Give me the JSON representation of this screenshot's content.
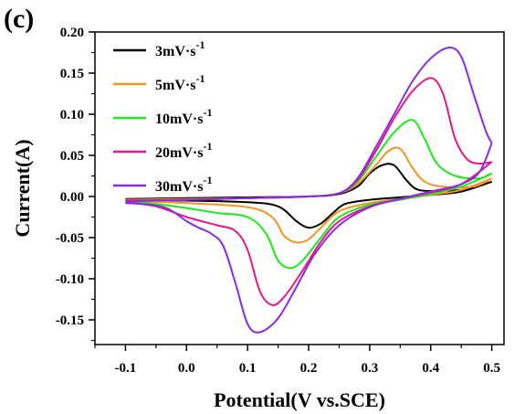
{
  "panel_label": "(c)",
  "chart_data": {
    "type": "line",
    "title": "",
    "xlabel": "Potential(V vs.SCE)",
    "ylabel": "Current(A)",
    "xlim": [
      -0.15,
      0.52
    ],
    "ylim": [
      -0.18,
      0.2
    ],
    "xticks": [
      -0.1,
      0.0,
      0.1,
      0.2,
      0.3,
      0.4,
      0.5
    ],
    "xtick_labels": [
      "-0.1",
      "0.0",
      "0.1",
      "0.2",
      "0.3",
      "0.4",
      "0.5"
    ],
    "yticks": [
      -0.15,
      -0.1,
      -0.05,
      0.0,
      0.05,
      0.1,
      0.15,
      0.2
    ],
    "ytick_labels": [
      "-0.15",
      "-0.10",
      "-0.05",
      "0.00",
      "0.05",
      "0.10",
      "0.15",
      "0.20"
    ],
    "grid": false,
    "legend_position": "top-left",
    "series": [
      {
        "name": "3mV·s",
        "name_sup": "-1",
        "color": "#000000",
        "anodic": [
          [
            -0.1,
            -0.003
          ],
          [
            0.0,
            -0.002
          ],
          [
            0.1,
            -0.001
          ],
          [
            0.2,
            0.0
          ],
          [
            0.25,
            0.003
          ],
          [
            0.28,
            0.012
          ],
          [
            0.3,
            0.028
          ],
          [
            0.32,
            0.038
          ],
          [
            0.34,
            0.038
          ],
          [
            0.36,
            0.02
          ],
          [
            0.38,
            0.008
          ],
          [
            0.42,
            0.007
          ],
          [
            0.46,
            0.009
          ],
          [
            0.5,
            0.018
          ]
        ],
        "cathodic": [
          [
            0.5,
            0.018
          ],
          [
            0.45,
            0.006
          ],
          [
            0.4,
            0.002
          ],
          [
            0.35,
            -0.001
          ],
          [
            0.3,
            -0.004
          ],
          [
            0.26,
            -0.009
          ],
          [
            0.24,
            -0.02
          ],
          [
            0.22,
            -0.033
          ],
          [
            0.2,
            -0.038
          ],
          [
            0.18,
            -0.03
          ],
          [
            0.15,
            -0.012
          ],
          [
            0.1,
            -0.007
          ],
          [
            0.0,
            -0.005
          ],
          [
            -0.1,
            -0.004
          ]
        ]
      },
      {
        "name": "5mV·s",
        "name_sup": "-1",
        "color": "#F7941D",
        "anodic": [
          [
            -0.1,
            -0.004
          ],
          [
            0.0,
            -0.003
          ],
          [
            0.1,
            -0.002
          ],
          [
            0.2,
            0.0
          ],
          [
            0.25,
            0.004
          ],
          [
            0.28,
            0.015
          ],
          [
            0.31,
            0.038
          ],
          [
            0.33,
            0.055
          ],
          [
            0.35,
            0.058
          ],
          [
            0.37,
            0.035
          ],
          [
            0.39,
            0.018
          ],
          [
            0.42,
            0.012
          ],
          [
            0.47,
            0.012
          ],
          [
            0.5,
            0.022
          ]
        ],
        "cathodic": [
          [
            0.5,
            0.022
          ],
          [
            0.45,
            0.008
          ],
          [
            0.4,
            0.002
          ],
          [
            0.35,
            -0.003
          ],
          [
            0.3,
            -0.008
          ],
          [
            0.25,
            -0.018
          ],
          [
            0.22,
            -0.038
          ],
          [
            0.2,
            -0.052
          ],
          [
            0.18,
            -0.056
          ],
          [
            0.16,
            -0.048
          ],
          [
            0.14,
            -0.025
          ],
          [
            0.1,
            -0.013
          ],
          [
            0.0,
            -0.008
          ],
          [
            -0.1,
            -0.005
          ]
        ]
      },
      {
        "name": "10mV·s",
        "name_sup": "-1",
        "color": "#1EE81E",
        "anodic": [
          [
            -0.1,
            -0.005
          ],
          [
            0.0,
            -0.004
          ],
          [
            0.1,
            -0.002
          ],
          [
            0.2,
            0.0
          ],
          [
            0.25,
            0.004
          ],
          [
            0.28,
            0.018
          ],
          [
            0.31,
            0.048
          ],
          [
            0.34,
            0.078
          ],
          [
            0.37,
            0.093
          ],
          [
            0.39,
            0.07
          ],
          [
            0.41,
            0.04
          ],
          [
            0.44,
            0.025
          ],
          [
            0.48,
            0.022
          ],
          [
            0.5,
            0.028
          ]
        ],
        "cathodic": [
          [
            0.5,
            0.028
          ],
          [
            0.45,
            0.012
          ],
          [
            0.4,
            0.003
          ],
          [
            0.35,
            -0.004
          ],
          [
            0.3,
            -0.01
          ],
          [
            0.25,
            -0.025
          ],
          [
            0.22,
            -0.05
          ],
          [
            0.19,
            -0.078
          ],
          [
            0.17,
            -0.087
          ],
          [
            0.15,
            -0.078
          ],
          [
            0.13,
            -0.045
          ],
          [
            0.1,
            -0.025
          ],
          [
            0.05,
            -0.02
          ],
          [
            0.0,
            -0.014
          ],
          [
            -0.05,
            -0.009
          ],
          [
            -0.1,
            -0.006
          ]
        ]
      },
      {
        "name": "20mV·s",
        "name_sup": "-1",
        "color": "#E8178A",
        "anodic": [
          [
            -0.1,
            -0.005
          ],
          [
            0.0,
            -0.004
          ],
          [
            0.1,
            -0.002
          ],
          [
            0.2,
            0.0
          ],
          [
            0.25,
            0.004
          ],
          [
            0.28,
            0.02
          ],
          [
            0.31,
            0.055
          ],
          [
            0.34,
            0.095
          ],
          [
            0.37,
            0.128
          ],
          [
            0.4,
            0.144
          ],
          [
            0.42,
            0.125
          ],
          [
            0.44,
            0.07
          ],
          [
            0.46,
            0.045
          ],
          [
            0.48,
            0.04
          ],
          [
            0.5,
            0.042
          ]
        ],
        "cathodic": [
          [
            0.5,
            0.042
          ],
          [
            0.45,
            0.015
          ],
          [
            0.4,
            0.005
          ],
          [
            0.35,
            -0.003
          ],
          [
            0.3,
            -0.012
          ],
          [
            0.25,
            -0.03
          ],
          [
            0.22,
            -0.055
          ],
          [
            0.19,
            -0.09
          ],
          [
            0.16,
            -0.122
          ],
          [
            0.14,
            -0.132
          ],
          [
            0.12,
            -0.115
          ],
          [
            0.1,
            -0.065
          ],
          [
            0.08,
            -0.042
          ],
          [
            0.05,
            -0.035
          ],
          [
            0.0,
            -0.025
          ],
          [
            -0.05,
            -0.012
          ],
          [
            -0.1,
            -0.007
          ]
        ]
      },
      {
        "name": "30mV·s",
        "name_sup": "-1",
        "color": "#8A2BE2",
        "anodic": [
          [
            -0.1,
            -0.006
          ],
          [
            0.0,
            -0.004
          ],
          [
            0.1,
            -0.002
          ],
          [
            0.2,
            0.0
          ],
          [
            0.25,
            0.004
          ],
          [
            0.28,
            0.022
          ],
          [
            0.31,
            0.06
          ],
          [
            0.34,
            0.1
          ],
          [
            0.37,
            0.14
          ],
          [
            0.4,
            0.168
          ],
          [
            0.43,
            0.181
          ],
          [
            0.45,
            0.17
          ],
          [
            0.47,
            0.125
          ],
          [
            0.49,
            0.08
          ],
          [
            0.5,
            0.065
          ]
        ],
        "cathodic": [
          [
            0.5,
            0.065
          ],
          [
            0.48,
            0.03
          ],
          [
            0.45,
            0.015
          ],
          [
            0.4,
            0.006
          ],
          [
            0.35,
            -0.003
          ],
          [
            0.3,
            -0.013
          ],
          [
            0.25,
            -0.035
          ],
          [
            0.21,
            -0.07
          ],
          [
            0.18,
            -0.11
          ],
          [
            0.15,
            -0.148
          ],
          [
            0.12,
            -0.165
          ],
          [
            0.1,
            -0.155
          ],
          [
            0.08,
            -0.105
          ],
          [
            0.06,
            -0.06
          ],
          [
            0.04,
            -0.045
          ],
          [
            0.02,
            -0.038
          ],
          [
            0.0,
            -0.03
          ],
          [
            -0.03,
            -0.015
          ],
          [
            -0.06,
            -0.01
          ],
          [
            -0.1,
            -0.008
          ]
        ]
      }
    ]
  }
}
